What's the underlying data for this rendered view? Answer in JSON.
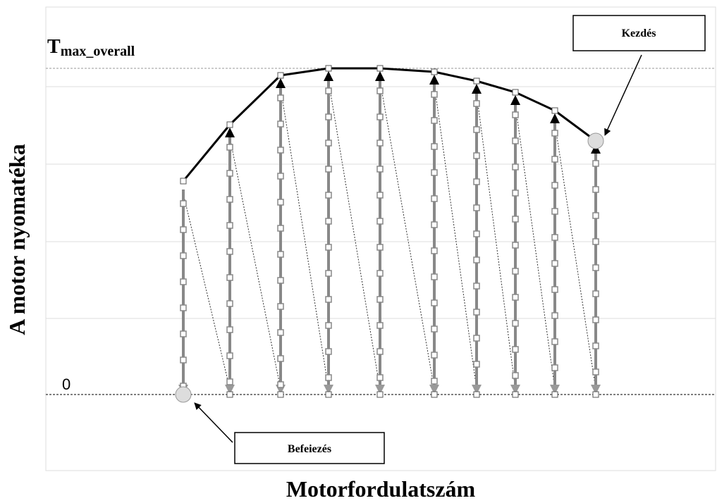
{
  "y_axis_label": "A motor nyomatéka",
  "x_axis_label": "Motorfordulatszám",
  "tmax_label": {
    "main": "T",
    "sub": "max_overall"
  },
  "zero_label": "0",
  "callouts": {
    "start": "Kezdés",
    "end": "Befeiezés"
  }
}
